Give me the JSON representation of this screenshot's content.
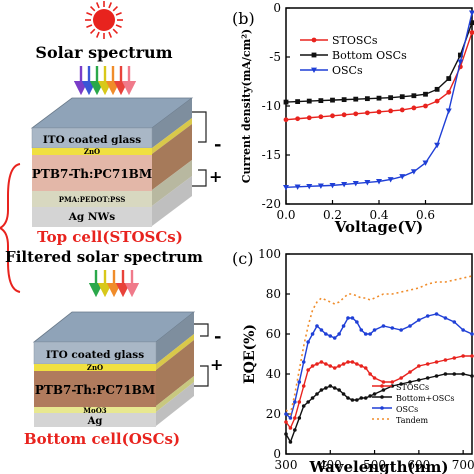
{
  "left_panel": {
    "solar_label": "Solar spectrum",
    "filtered_label": "Filtered solar spectrum",
    "top_device": {
      "layers": [
        "ITO coated glass",
        "ZnO",
        "PTB7-Th:PC71BM",
        "PMA:PEDOT:PSS",
        "Ag NWs"
      ],
      "minus": "-",
      "plus": "+",
      "caption": "Top cell(STOSCs)"
    },
    "bottom_device": {
      "layers": [
        "ITO coated glass",
        "ZnO",
        "PTB7-Th:PC71BM",
        "MoO3",
        "Ag"
      ],
      "minus": "-",
      "plus": "+",
      "caption": "Bottom cell(OSCs)"
    },
    "colors": {
      "sun": "#e8231e",
      "caption": "#e8231e",
      "rays_top": [
        "#7a3dc8",
        "#3a56d6",
        "#2aa84a",
        "#d8c81a",
        "#f08c2a",
        "#e8423a",
        "#f07a8a"
      ],
      "rays_bottom": [
        "#2aa84a",
        "#d8c81a",
        "#f08c2a",
        "#e8423a",
        "#f07a8a"
      ]
    }
  },
  "chart_data": [
    {
      "type": "line",
      "panel_label": "(b)",
      "xlabel": "Voltage(V)",
      "ylabel": "Current density(mA/cm²)",
      "xlim": [
        0,
        0.8
      ],
      "ylim": [
        -20,
        0
      ],
      "xticks": [
        "0.0",
        "0.2",
        "0.4",
        "0.6"
      ],
      "xtick_values": [
        0,
        0.2,
        0.4,
        0.6
      ],
      "yticks": [
        "-20",
        "-15",
        "-10",
        "-5",
        "0"
      ],
      "ytick_values": [
        -20,
        -15,
        -10,
        -5,
        0
      ],
      "legend_position": "top-left",
      "series": [
        {
          "name": "STOSCs",
          "color": "#e8231e",
          "marker": "circle",
          "x": [
            0,
            0.05,
            0.1,
            0.15,
            0.2,
            0.25,
            0.3,
            0.35,
            0.4,
            0.45,
            0.5,
            0.55,
            0.6,
            0.65,
            0.7,
            0.75,
            0.8
          ],
          "y": [
            -11.4,
            -11.3,
            -11.2,
            -11.1,
            -11.0,
            -10.9,
            -10.8,
            -10.7,
            -10.6,
            -10.5,
            -10.4,
            -10.2,
            -10.0,
            -9.5,
            -8.6,
            -6.0,
            -2.5
          ]
        },
        {
          "name": "Bottom OSCs",
          "color": "#111111",
          "marker": "square",
          "x": [
            0,
            0.05,
            0.1,
            0.15,
            0.2,
            0.25,
            0.3,
            0.35,
            0.4,
            0.45,
            0.5,
            0.55,
            0.6,
            0.65,
            0.7,
            0.75,
            0.8
          ],
          "y": [
            -9.6,
            -9.55,
            -9.5,
            -9.45,
            -9.4,
            -9.35,
            -9.3,
            -9.25,
            -9.2,
            -9.15,
            -9.05,
            -8.95,
            -8.8,
            -8.3,
            -7.2,
            -4.8,
            -1.5
          ]
        },
        {
          "name": "OSCs",
          "color": "#1f3fd6",
          "marker": "triangle-down",
          "x": [
            0,
            0.05,
            0.1,
            0.15,
            0.2,
            0.25,
            0.3,
            0.35,
            0.4,
            0.45,
            0.5,
            0.55,
            0.6,
            0.65,
            0.7,
            0.75,
            0.8
          ],
          "y": [
            -18.3,
            -18.25,
            -18.2,
            -18.15,
            -18.1,
            -18.0,
            -17.9,
            -17.8,
            -17.7,
            -17.5,
            -17.2,
            -16.7,
            -15.8,
            -14.0,
            -10.5,
            -5.5,
            -0.5
          ]
        }
      ]
    },
    {
      "type": "line",
      "panel_label": "(c)",
      "xlabel": "Wavelength(nm)",
      "ylabel": "EQE(%)",
      "xlim": [
        300,
        720
      ],
      "ylim": [
        0,
        100
      ],
      "xticks": [
        "300",
        "400",
        "500",
        "600",
        "700"
      ],
      "xtick_values": [
        300,
        400,
        500,
        600,
        700
      ],
      "yticks": [
        "0",
        "20",
        "40",
        "60",
        "80",
        "100"
      ],
      "ytick_values": [
        0,
        20,
        40,
        60,
        80,
        100
      ],
      "legend_position": "bottom-left",
      "series": [
        {
          "name": "STOSCs",
          "color": "#e8231e",
          "style": "line-marker",
          "x": [
            300,
            310,
            320,
            330,
            340,
            350,
            360,
            370,
            380,
            390,
            400,
            410,
            420,
            430,
            440,
            450,
            460,
            470,
            480,
            490,
            500,
            520,
            540,
            560,
            580,
            600,
            620,
            640,
            660,
            680,
            700,
            720
          ],
          "y": [
            16,
            13,
            18,
            26,
            34,
            42,
            44,
            45,
            46,
            45,
            44,
            43,
            44,
            45,
            46,
            46,
            45,
            44,
            43,
            40,
            38,
            36,
            36,
            38,
            41,
            44,
            45,
            46,
            47,
            48,
            49,
            49
          ]
        },
        {
          "name": "Bottom+OSCs",
          "color": "#111111",
          "style": "line-marker",
          "x": [
            300,
            310,
            320,
            330,
            340,
            350,
            360,
            370,
            380,
            390,
            400,
            410,
            420,
            430,
            440,
            450,
            460,
            470,
            480,
            490,
            500,
            520,
            540,
            560,
            580,
            600,
            620,
            640,
            660,
            680,
            700,
            720
          ],
          "y": [
            10,
            6,
            12,
            18,
            24,
            26,
            28,
            30,
            32,
            33,
            34,
            33,
            32,
            30,
            28,
            27,
            27,
            28,
            28,
            29,
            30,
            32,
            34,
            35,
            36,
            37,
            38,
            39,
            40,
            40,
            40,
            39
          ]
        },
        {
          "name": "OSCs",
          "color": "#1f3fd6",
          "style": "line-marker",
          "x": [
            300,
            310,
            320,
            330,
            340,
            350,
            360,
            370,
            380,
            390,
            400,
            410,
            420,
            430,
            440,
            450,
            460,
            470,
            480,
            490,
            500,
            520,
            540,
            560,
            580,
            600,
            620,
            640,
            660,
            680,
            700,
            720
          ],
          "y": [
            20,
            18,
            26,
            36,
            46,
            56,
            60,
            64,
            62,
            60,
            59,
            58,
            60,
            64,
            68,
            68,
            66,
            62,
            60,
            60,
            62,
            64,
            63,
            62,
            64,
            67,
            69,
            70,
            68,
            66,
            62,
            60
          ]
        },
        {
          "name": "Tandem",
          "color": "#f08c2a",
          "style": "dotted",
          "x": [
            300,
            310,
            320,
            330,
            340,
            350,
            360,
            370,
            380,
            390,
            400,
            410,
            420,
            430,
            440,
            450,
            460,
            470,
            480,
            490,
            500,
            520,
            540,
            560,
            580,
            600,
            620,
            640,
            660,
            680,
            700,
            720
          ],
          "y": [
            22,
            20,
            30,
            42,
            54,
            64,
            72,
            76,
            78,
            77,
            76,
            75,
            76,
            78,
            80,
            80,
            79,
            78,
            78,
            77,
            78,
            80,
            80,
            81,
            82,
            83,
            85,
            86,
            86,
            87,
            88,
            89
          ]
        }
      ]
    }
  ]
}
